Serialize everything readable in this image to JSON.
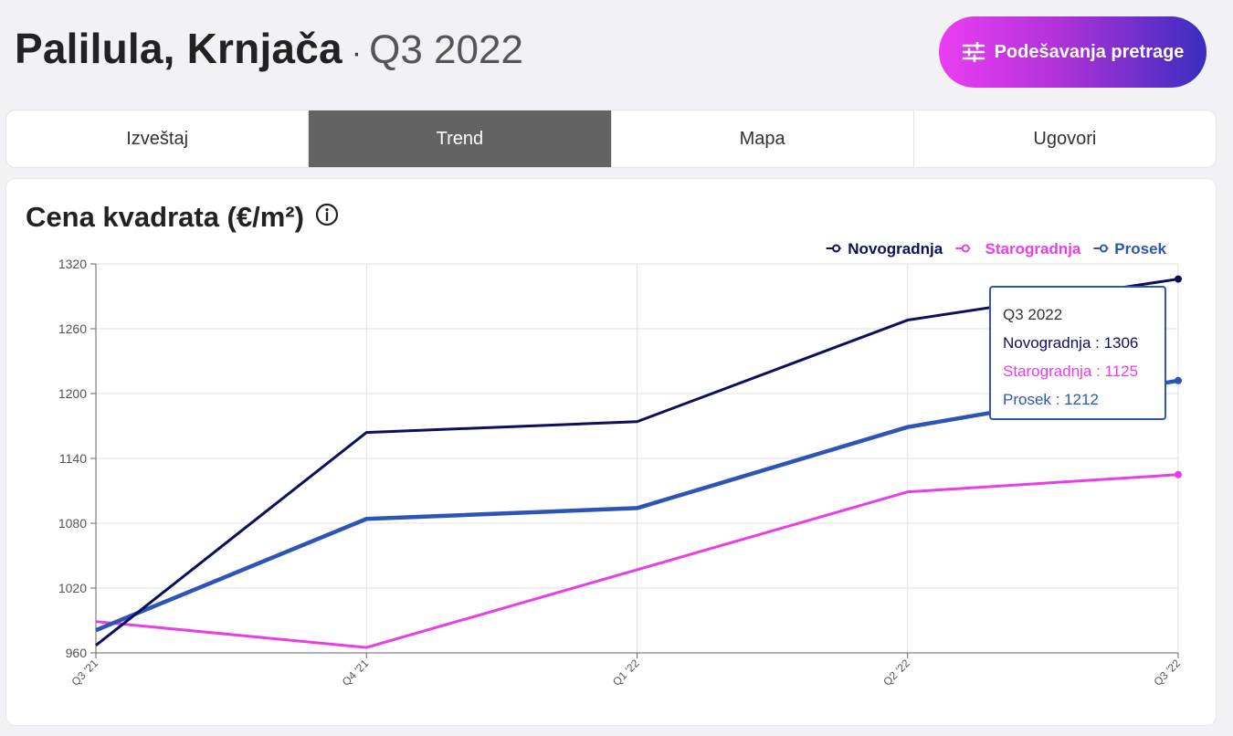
{
  "header": {
    "location": "Palilula, Krnjača",
    "separator": "·",
    "period": "Q3 2022"
  },
  "settings_button": {
    "label": "Podešavanja pretrage",
    "icon": "sliders-icon"
  },
  "tabs": [
    {
      "label": "Izveštaj",
      "active": false
    },
    {
      "label": "Trend",
      "active": true
    },
    {
      "label": "Mapa",
      "active": false
    },
    {
      "label": "Ugovori",
      "active": false
    }
  ],
  "colors": {
    "novogradnja": "#0c0e5e",
    "starogradnja": "#e93de8",
    "prosek": "#2d55b8",
    "active_tab": "#636363"
  },
  "chart_data": {
    "type": "line",
    "title": "Cena kvadrata (€/m²)",
    "categories": [
      "Q3 '21",
      "Q4 '21",
      "Q1 '22",
      "Q2 '22",
      "Q3 '22"
    ],
    "yticks": [
      960,
      1020,
      1080,
      1140,
      1200,
      1260,
      1320
    ],
    "ylim": [
      960,
      1320
    ],
    "grid": true,
    "legend_position": "top-right",
    "series": [
      {
        "name": "Novogradnja",
        "key": "novogradnja",
        "values": [
          967,
          1164,
          1174,
          1268,
          1306
        ]
      },
      {
        "name": "Starogradnja",
        "key": "starogradnja",
        "values": [
          989,
          965,
          1037,
          1109,
          1125
        ]
      },
      {
        "name": "Prosek",
        "key": "prosek",
        "values": [
          981,
          1084,
          1094,
          1169,
          1212
        ]
      }
    ]
  },
  "tooltip": {
    "title": "Q3 2022",
    "rows": [
      {
        "label": "Novogradnja : 1306",
        "key": "novogradnja"
      },
      {
        "label": "Starogradnja : 1125",
        "key": "starogradnja"
      },
      {
        "label": "Prosek : 1212",
        "key": "prosek"
      }
    ]
  }
}
